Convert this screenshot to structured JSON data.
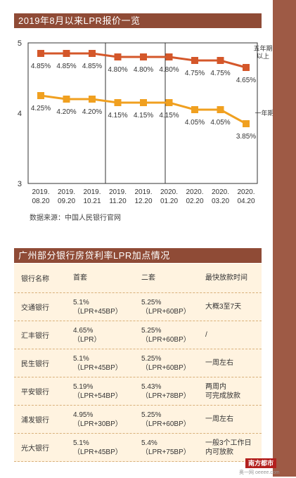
{
  "chart_title": "2019年8月以来LPR报价一览",
  "chart_data": {
    "type": "line",
    "categories": [
      "2019.\n08.20",
      "2019.\n09.20",
      "2019.\n10.21",
      "2019.\n11.20",
      "2019.\n12.20",
      "2020.\n01.20",
      "2020.\n02.20",
      "2020.\n03.20",
      "2020.\n04.20"
    ],
    "series": [
      {
        "name": "五年期以上",
        "values": [
          4.85,
          4.85,
          4.85,
          4.8,
          4.8,
          4.8,
          4.75,
          4.75,
          4.65
        ],
        "labels": [
          "4.85%",
          "4.85%",
          "4.85%",
          "4.80%",
          "4.80%",
          "4.80%",
          "4.75%",
          "4.75%",
          "4.65%"
        ],
        "color": "#d4572a"
      },
      {
        "name": "一年期",
        "values": [
          4.25,
          4.2,
          4.2,
          4.15,
          4.15,
          4.15,
          4.05,
          4.05,
          3.85
        ],
        "labels": [
          "4.25%",
          "4.20%",
          "4.20%",
          "4.15%",
          "4.15%",
          "4.15%",
          "4.05%",
          "4.05%",
          "3.85%"
        ],
        "color": "#f0a020"
      }
    ],
    "yticks": [
      "5",
      "4",
      "3"
    ],
    "ylim": [
      3,
      5
    ],
    "series_label_five": [
      "五年期",
      "以上"
    ],
    "series_label_one": "一年期",
    "grid": "vertical"
  },
  "source": "数据来源：中国人民银行官网",
  "table_title": "广州部分银行房贷利率LPR加点情况",
  "table": {
    "headers": [
      "银行名称",
      "首套",
      "二套",
      "最快放款时间"
    ],
    "rows": [
      {
        "bank": "交通银行",
        "first": [
          "5.1%",
          "（LPR+45BP）"
        ],
        "second": [
          "5.25%",
          "（LPR+60BP）"
        ],
        "time": [
          "大概3至7天"
        ]
      },
      {
        "bank": "汇丰银行",
        "first": [
          "4.65%",
          "（LPR）"
        ],
        "second": [
          "5.25%",
          "（LPR+60BP）"
        ],
        "time": [
          "/"
        ]
      },
      {
        "bank": "民生银行",
        "first": [
          "5.1%",
          "（LPR+45BP）"
        ],
        "second": [
          "5.25%",
          "（LPR+60BP）"
        ],
        "time": [
          "一周左右"
        ]
      },
      {
        "bank": "平安银行",
        "first": [
          "5.19%",
          "（LPR+54BP）"
        ],
        "second": [
          "5.43%",
          "（LPR+78BP）"
        ],
        "time": [
          "两周内",
          "可完成放款"
        ]
      },
      {
        "bank": "浦发银行",
        "first": [
          "4.95%",
          "（LPR+30BP）"
        ],
        "second": [
          "5.25%",
          "（LPR+60BP）"
        ],
        "time": [
          "一周左右"
        ]
      },
      {
        "bank": "光大银行",
        "first": [
          "5.1%",
          "（LPR+45BP）"
        ],
        "second": [
          "5.4%",
          "（LPR+75BP）"
        ],
        "time": [
          "一般3个工作日",
          "内可放款"
        ]
      }
    ]
  },
  "logo": "南方都市报",
  "logo_sub": "奥一网 oeeee.com"
}
